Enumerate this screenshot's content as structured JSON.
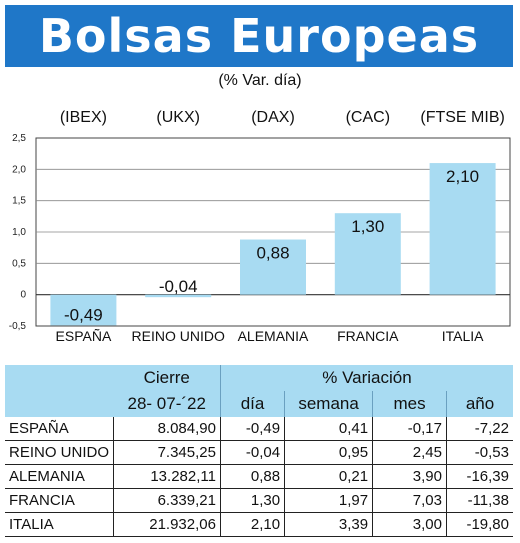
{
  "header": {
    "title": "Bolsas Europeas",
    "subtitle": "(% Var. día)"
  },
  "chart_data": {
    "type": "bar",
    "indices": [
      "(IBEX)",
      "(UKX)",
      "(DAX)",
      "(CAC)",
      "(FTSE MIB)"
    ],
    "categories": [
      "ESPAÑA",
      "REINO UNIDO",
      "ALEMANIA",
      "FRANCIA",
      "ITALIA"
    ],
    "values": [
      -0.49,
      -0.04,
      0.88,
      1.3,
      2.1
    ],
    "value_labels": [
      "-0,49",
      "-0,04",
      "0,88",
      "1,30",
      "2,10"
    ],
    "ylim": [
      -0.5,
      2.5
    ],
    "yticks": [
      -0.5,
      0,
      0.5,
      1.0,
      1.5,
      2.0,
      2.5
    ],
    "ytick_labels": [
      "-0,5",
      "0",
      "0,5",
      "1,0",
      "1,5",
      "2,0",
      "2,5"
    ],
    "grid": true,
    "bar_color": "#a8dbf2"
  },
  "table": {
    "col_cierre": "Cierre",
    "col_variacion": "% Variación",
    "date": "28- 07-´22",
    "subcols": [
      "día",
      "semana",
      "mes",
      "año"
    ],
    "rows": [
      {
        "name": "ESPAÑA",
        "cierre": "8.084,90",
        "dia": "-0,49",
        "semana": "0,41",
        "mes": "-0,17",
        "ano": "-7,22"
      },
      {
        "name": "REINO UNIDO",
        "cierre": "7.345,25",
        "dia": "-0,04",
        "semana": "0,95",
        "mes": "2,45",
        "ano": "-0,53"
      },
      {
        "name": "ALEMANIA",
        "cierre": "13.282,11",
        "dia": "0,88",
        "semana": "0,21",
        "mes": "3,90",
        "ano": "-16,39"
      },
      {
        "name": "FRANCIA",
        "cierre": "6.339,21",
        "dia": "1,30",
        "semana": "1,97",
        "mes": "7,03",
        "ano": "-11,38"
      },
      {
        "name": "ITALIA",
        "cierre": "21.932,06",
        "dia": "2,10",
        "semana": "3,39",
        "mes": "3,00",
        "ano": "-19,80"
      }
    ]
  },
  "colors": {
    "banner": "#1f77c8",
    "bar": "#a8dbf2",
    "table_header": "#a8dbf2"
  }
}
